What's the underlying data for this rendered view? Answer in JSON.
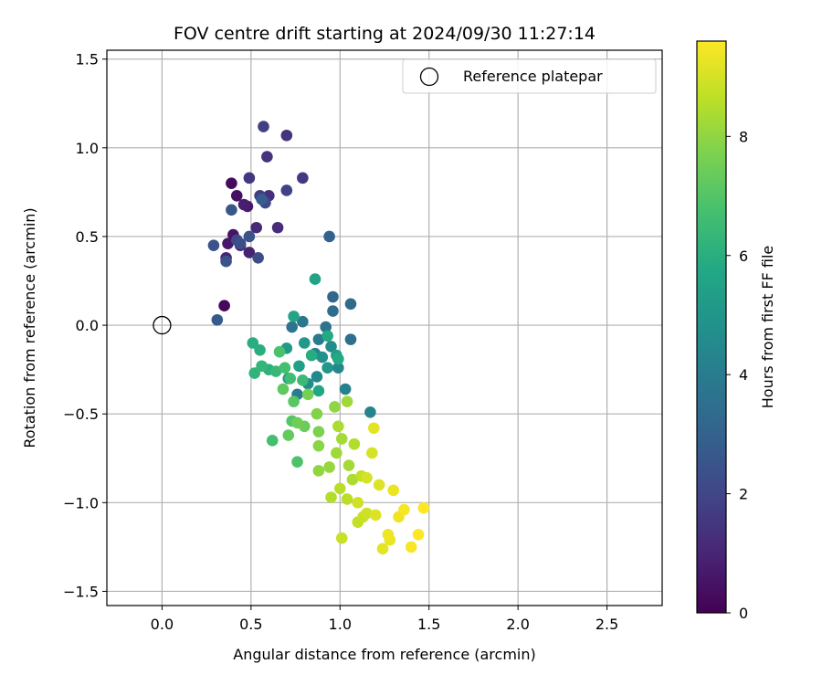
{
  "chart_data": {
    "type": "scatter",
    "title": "FOV centre drift starting at 2024/09/30 11:27:14",
    "xlabel": "Angular distance from reference (arcmin)",
    "ylabel": "Rotation from reference (arcmin)",
    "xlim": [
      -0.31,
      2.81
    ],
    "ylim": [
      -1.58,
      1.55
    ],
    "xticks": [
      0.0,
      0.5,
      1.0,
      1.5,
      2.0,
      2.5
    ],
    "xtick_labels": [
      "0.0",
      "0.5",
      "1.0",
      "1.5",
      "2.0",
      "2.5"
    ],
    "yticks": [
      -1.5,
      -1.0,
      -0.5,
      0.0,
      0.5,
      1.0,
      1.5
    ],
    "ytick_labels": [
      "−1.5",
      "−1.0",
      "−0.5",
      "0.0",
      "0.5",
      "1.0",
      "1.5"
    ],
    "grid": true,
    "colormap": "viridis",
    "colorbar": {
      "label": "Hours from first FF file",
      "range": [
        0,
        9.6
      ],
      "ticks": [
        0,
        2,
        4,
        6,
        8
      ],
      "tick_labels": [
        "0",
        "2",
        "4",
        "6",
        "8"
      ]
    },
    "legend": {
      "placement": "top-right",
      "entries": [
        {
          "label": "Reference platepar",
          "marker": "open-circle"
        }
      ]
    },
    "reference_point": {
      "x": 0.0,
      "y": 0.0
    },
    "points": [
      [
        0.35,
        0.11,
        0.2
      ],
      [
        0.39,
        0.8,
        0.3
      ],
      [
        0.42,
        0.73,
        0.4
      ],
      [
        0.4,
        0.51,
        0.5
      ],
      [
        0.37,
        0.46,
        0.6
      ],
      [
        0.48,
        0.67,
        0.7
      ],
      [
        0.46,
        0.68,
        0.8
      ],
      [
        0.49,
        0.41,
        0.9
      ],
      [
        0.44,
        0.45,
        1.0
      ],
      [
        0.36,
        0.38,
        1.0
      ],
      [
        0.53,
        0.55,
        1.1
      ],
      [
        0.65,
        0.55,
        1.2
      ],
      [
        0.6,
        0.73,
        1.3
      ],
      [
        0.59,
        0.95,
        1.4
      ],
      [
        0.7,
        1.07,
        1.4
      ],
      [
        0.49,
        0.83,
        1.5
      ],
      [
        0.79,
        0.83,
        1.6
      ],
      [
        0.55,
        0.73,
        1.7
      ],
      [
        0.57,
        1.12,
        1.8
      ],
      [
        0.7,
        0.76,
        1.9
      ],
      [
        0.42,
        0.48,
        2.0
      ],
      [
        0.58,
        0.69,
        2.1
      ],
      [
        0.54,
        0.38,
        2.2
      ],
      [
        0.44,
        0.46,
        2.3
      ],
      [
        0.49,
        0.5,
        2.4
      ],
      [
        0.36,
        0.36,
        2.5
      ],
      [
        0.29,
        0.45,
        2.5
      ],
      [
        0.39,
        0.65,
        2.6
      ],
      [
        0.31,
        0.03,
        2.7
      ],
      [
        0.56,
        0.71,
        2.8
      ],
      [
        0.94,
        0.5,
        3.0
      ],
      [
        0.96,
        0.16,
        3.2
      ],
      [
        1.06,
        0.12,
        3.3
      ],
      [
        0.96,
        0.08,
        3.4
      ],
      [
        1.06,
        -0.08,
        3.5
      ],
      [
        0.92,
        -0.01,
        3.6
      ],
      [
        0.73,
        -0.01,
        3.7
      ],
      [
        0.79,
        0.02,
        3.8
      ],
      [
        0.88,
        -0.08,
        3.9
      ],
      [
        0.76,
        -0.39,
        4.0
      ],
      [
        0.86,
        -0.16,
        4.1
      ],
      [
        1.03,
        -0.36,
        4.2
      ],
      [
        1.17,
        -0.49,
        4.3
      ],
      [
        0.99,
        -0.24,
        4.4
      ],
      [
        0.87,
        -0.29,
        4.5
      ],
      [
        0.95,
        -0.12,
        4.6
      ],
      [
        0.82,
        -0.33,
        4.7
      ],
      [
        0.9,
        -0.18,
        4.8
      ],
      [
        0.71,
        -0.3,
        4.9
      ],
      [
        0.93,
        -0.24,
        5.0
      ],
      [
        0.8,
        -0.1,
        5.1
      ],
      [
        0.7,
        -0.13,
        5.2
      ],
      [
        0.98,
        -0.17,
        5.3
      ],
      [
        0.77,
        -0.23,
        5.4
      ],
      [
        0.86,
        0.26,
        5.5
      ],
      [
        0.74,
        0.05,
        5.6
      ],
      [
        0.88,
        -0.37,
        5.7
      ],
      [
        0.93,
        -0.06,
        5.8
      ],
      [
        0.99,
        -0.19,
        5.8
      ],
      [
        0.84,
        -0.17,
        5.9
      ],
      [
        0.55,
        -0.14,
        6.0
      ],
      [
        0.51,
        -0.1,
        6.0
      ],
      [
        0.6,
        -0.25,
        6.1
      ],
      [
        0.52,
        -0.27,
        6.2
      ],
      [
        0.56,
        -0.23,
        6.3
      ],
      [
        0.64,
        -0.26,
        6.4
      ],
      [
        0.79,
        -0.31,
        6.5
      ],
      [
        0.72,
        -0.3,
        6.6
      ],
      [
        0.62,
        -0.65,
        6.7
      ],
      [
        0.69,
        -0.24,
        6.7
      ],
      [
        0.66,
        -0.15,
        6.8
      ],
      [
        0.76,
        -0.77,
        6.9
      ],
      [
        0.73,
        -0.54,
        7.0
      ],
      [
        0.74,
        -0.43,
        7.1
      ],
      [
        0.68,
        -0.36,
        7.2
      ],
      [
        0.71,
        -0.62,
        7.3
      ],
      [
        0.8,
        -0.57,
        7.4
      ],
      [
        0.76,
        -0.55,
        7.5
      ],
      [
        0.82,
        -0.39,
        7.6
      ],
      [
        0.88,
        -0.6,
        7.7
      ],
      [
        0.87,
        -0.5,
        7.8
      ],
      [
        0.88,
        -0.68,
        7.9
      ],
      [
        0.97,
        -0.46,
        8.0
      ],
      [
        0.88,
        -0.82,
        8.0
      ],
      [
        0.94,
        -0.8,
        8.1
      ],
      [
        1.04,
        -0.43,
        8.2
      ],
      [
        0.98,
        -0.72,
        8.2
      ],
      [
        1.01,
        -0.64,
        8.3
      ],
      [
        1.05,
        -0.79,
        8.3
      ],
      [
        0.99,
        -0.57,
        8.4
      ],
      [
        1.07,
        -0.87,
        8.4
      ],
      [
        0.95,
        -0.97,
        8.5
      ],
      [
        1.08,
        -0.67,
        8.5
      ],
      [
        1.0,
        -0.92,
        8.6
      ],
      [
        1.04,
        -0.98,
        8.6
      ],
      [
        1.1,
        -1.11,
        8.7
      ],
      [
        1.12,
        -0.85,
        8.7
      ],
      [
        1.13,
        -1.08,
        8.8
      ],
      [
        1.01,
        -1.2,
        8.8
      ],
      [
        1.15,
        -1.06,
        8.9
      ],
      [
        1.1,
        -1.0,
        8.9
      ],
      [
        1.15,
        -0.86,
        9.0
      ],
      [
        1.18,
        -0.72,
        9.0
      ],
      [
        1.2,
        -1.07,
        9.1
      ],
      [
        1.22,
        -0.9,
        9.1
      ],
      [
        1.19,
        -0.58,
        9.2
      ],
      [
        1.24,
        -1.26,
        9.2
      ],
      [
        1.28,
        -1.21,
        9.3
      ],
      [
        1.3,
        -0.93,
        9.3
      ],
      [
        1.27,
        -1.18,
        9.4
      ],
      [
        1.33,
        -1.08,
        9.4
      ],
      [
        1.36,
        -1.04,
        9.5
      ],
      [
        1.4,
        -1.25,
        9.5
      ],
      [
        1.44,
        -1.18,
        9.6
      ],
      [
        1.47,
        -1.03,
        9.6
      ]
    ]
  }
}
